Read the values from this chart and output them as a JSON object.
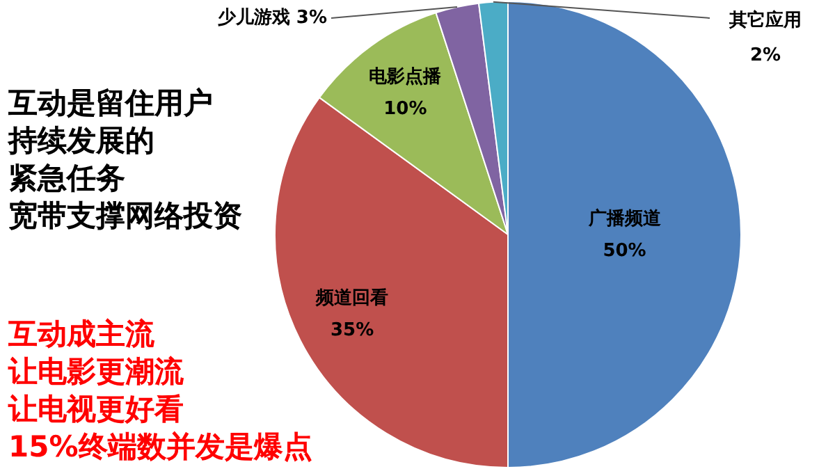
{
  "chart_data": {
    "type": "pie",
    "categories": [
      "广播频道",
      "频道回看",
      "电影点播",
      "少儿游戏",
      "其它应用"
    ],
    "values": [
      50,
      35,
      10,
      3,
      2
    ],
    "colors": [
      "#4f81bd",
      "#c0504d",
      "#9bbb59",
      "#8064a2",
      "#4bacc6"
    ],
    "value_labels": [
      "50%",
      "35%",
      "10%",
      "3%",
      "2%"
    ],
    "legend": false,
    "annotations": [
      "互动是留住用户",
      "持续发展的",
      "紧急任务",
      "宽带支撑网络投资",
      "互动成主流",
      "让电影更潮流",
      "让电视更好看",
      "15%终端数并发是爆点"
    ]
  }
}
